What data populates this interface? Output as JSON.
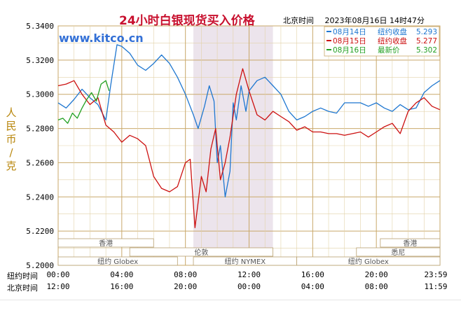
{
  "header": {
    "title": "24小时白银现货买入价格",
    "timezone": "北京时间",
    "timestamp": "2023年08月16日 14时47分"
  },
  "y_unit_label": "人民币/克",
  "watermark": "www.kitco.cn",
  "legend": [
    {
      "label": "08月14日",
      "kind": "纽约收盘",
      "value": "5.293",
      "color": "#1f77d0"
    },
    {
      "label": "08月15日",
      "kind": "纽约收盘",
      "value": "5.277",
      "color": "#cc1010"
    },
    {
      "label": "08月16日",
      "kind": "最新价",
      "value": "5.302",
      "color": "#22a022"
    }
  ],
  "markets": [
    {
      "name": "香港",
      "start": 0,
      "end": 6
    },
    {
      "name": "伦敦",
      "start": 4.5,
      "end": 13.5
    },
    {
      "name": "纽约 Globex",
      "start": 0,
      "end": 7.5
    },
    {
      "name": "纽约 NYMEX",
      "start": 8.5,
      "end": 15
    },
    {
      "name": "纽约 Globex",
      "start": 15,
      "end": 24
    },
    {
      "name": "香港",
      "start": 20.25,
      "end": 24
    },
    {
      "name": "悉尼",
      "start": 18.75,
      "end": 24
    }
  ],
  "time_rows": {
    "ny_label": "纽约时间",
    "bj_label": "北京时间",
    "ny_ticks": [
      "00:00",
      "04:00",
      "08:00",
      "12:00",
      "16:00",
      "20:00",
      "23:59"
    ],
    "bj_ticks": [
      "12:00",
      "16:00",
      "20:00",
      "00:00",
      "04:00",
      "08:00",
      "11:59"
    ]
  },
  "chart_data": {
    "type": "line",
    "title": "24小时白银现货买入价格",
    "ylabel": "人民币/克",
    "xlabel": "",
    "xlim": [
      0,
      24
    ],
    "ylim": [
      5.2,
      5.34
    ],
    "yticks": [
      "5.2000",
      "5.2200",
      "5.2400",
      "5.2600",
      "5.2800",
      "5.3000",
      "5.3200",
      "5.3400"
    ],
    "shaded_interval": [
      8.5,
      13.5
    ],
    "grid": true,
    "series": [
      {
        "name": "08月14日",
        "color": "#1f77d0",
        "x": [
          0,
          0.5,
          1,
          1.5,
          2,
          2.5,
          3,
          3.3,
          3.7,
          4,
          4.5,
          5,
          5.5,
          6,
          6.5,
          7,
          7.5,
          8,
          8.5,
          8.8,
          9.2,
          9.5,
          9.8,
          10,
          10.2,
          10.5,
          10.8,
          11,
          11.2,
          11.5,
          11.8,
          12,
          12.5,
          13,
          13.5,
          14,
          14.5,
          15,
          15.5,
          16,
          16.5,
          17,
          17.5,
          18,
          18.5,
          19,
          19.5,
          20,
          20.5,
          21,
          21.5,
          22,
          22.5,
          23,
          23.5,
          23.99
        ],
        "y": [
          5.295,
          5.292,
          5.297,
          5.303,
          5.298,
          5.294,
          5.285,
          5.305,
          5.329,
          5.328,
          5.324,
          5.317,
          5.314,
          5.318,
          5.323,
          5.318,
          5.31,
          5.3,
          5.288,
          5.28,
          5.293,
          5.305,
          5.296,
          5.26,
          5.27,
          5.24,
          5.255,
          5.295,
          5.285,
          5.305,
          5.29,
          5.302,
          5.308,
          5.31,
          5.305,
          5.3,
          5.29,
          5.285,
          5.287,
          5.29,
          5.292,
          5.29,
          5.289,
          5.295,
          5.295,
          5.295,
          5.293,
          5.295,
          5.292,
          5.29,
          5.294,
          5.291,
          5.292,
          5.301,
          5.305,
          5.308
        ]
      },
      {
        "name": "08月15日",
        "color": "#cc1010",
        "x": [
          0,
          0.5,
          1,
          1.5,
          2,
          2.5,
          3,
          3.5,
          4,
          4.5,
          5,
          5.5,
          6,
          6.5,
          7,
          7.5,
          8,
          8.3,
          8.6,
          9,
          9.3,
          9.6,
          9.9,
          10.2,
          10.5,
          10.8,
          11.2,
          11.6,
          12,
          12.5,
          13,
          13.5,
          14,
          14.5,
          15,
          15.5,
          16,
          16.5,
          17,
          17.5,
          18,
          18.5,
          19,
          19.5,
          20,
          20.5,
          21,
          21.5,
          22,
          22.5,
          23,
          23.5,
          23.99
        ],
        "y": [
          5.305,
          5.306,
          5.308,
          5.3,
          5.294,
          5.298,
          5.282,
          5.278,
          5.272,
          5.276,
          5.274,
          5.27,
          5.252,
          5.245,
          5.243,
          5.246,
          5.26,
          5.262,
          5.222,
          5.252,
          5.243,
          5.268,
          5.28,
          5.25,
          5.26,
          5.275,
          5.3,
          5.315,
          5.302,
          5.288,
          5.285,
          5.29,
          5.287,
          5.284,
          5.279,
          5.281,
          5.278,
          5.278,
          5.277,
          5.277,
          5.276,
          5.277,
          5.278,
          5.275,
          5.278,
          5.281,
          5.283,
          5.277,
          5.29,
          5.295,
          5.298,
          5.293,
          5.291
        ]
      },
      {
        "name": "08月16日",
        "color": "#22a022",
        "x": [
          0,
          0.3,
          0.6,
          0.9,
          1.2,
          1.5,
          1.8,
          2.1,
          2.4,
          2.7,
          3.0,
          3.2
        ],
        "y": [
          5.285,
          5.286,
          5.283,
          5.289,
          5.286,
          5.292,
          5.297,
          5.301,
          5.296,
          5.306,
          5.308,
          5.302
        ]
      }
    ]
  }
}
